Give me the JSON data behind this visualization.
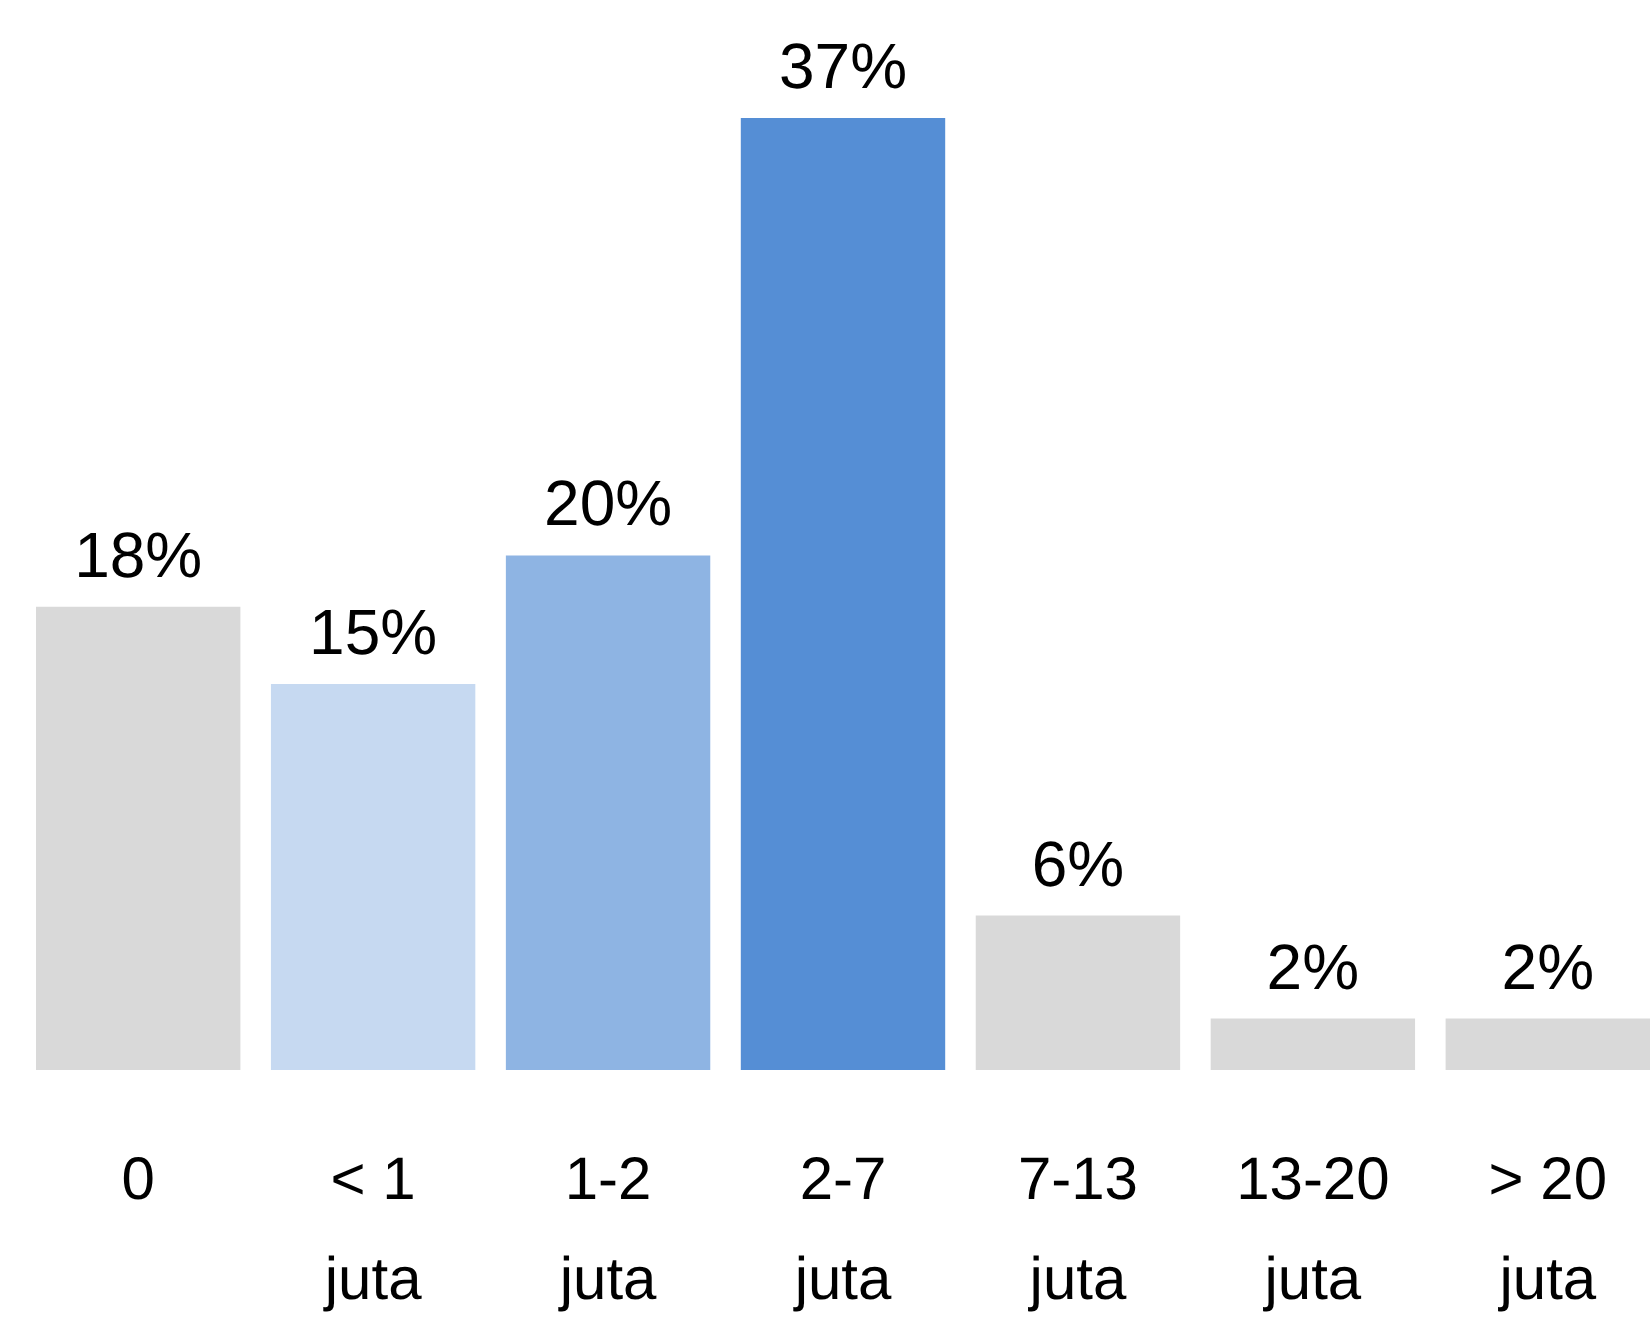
{
  "chart_data": {
    "type": "bar",
    "categories": [
      "0",
      "< 1 juta",
      "1-2 juta",
      "2-7 juta",
      "7-13 juta",
      "13-20 juta",
      "> 20 juta"
    ],
    "values": [
      18,
      15,
      20,
      37,
      6,
      2,
      2
    ],
    "value_labels": [
      "18%",
      "15%",
      "20%",
      "37%",
      "6%",
      "2%",
      "2%"
    ],
    "colors": [
      "#d9d9d9",
      "#c6d9f1",
      "#8eb4e3",
      "#558ed5",
      "#d9d9d9",
      "#d9d9d9",
      "#d9d9d9"
    ]
  }
}
